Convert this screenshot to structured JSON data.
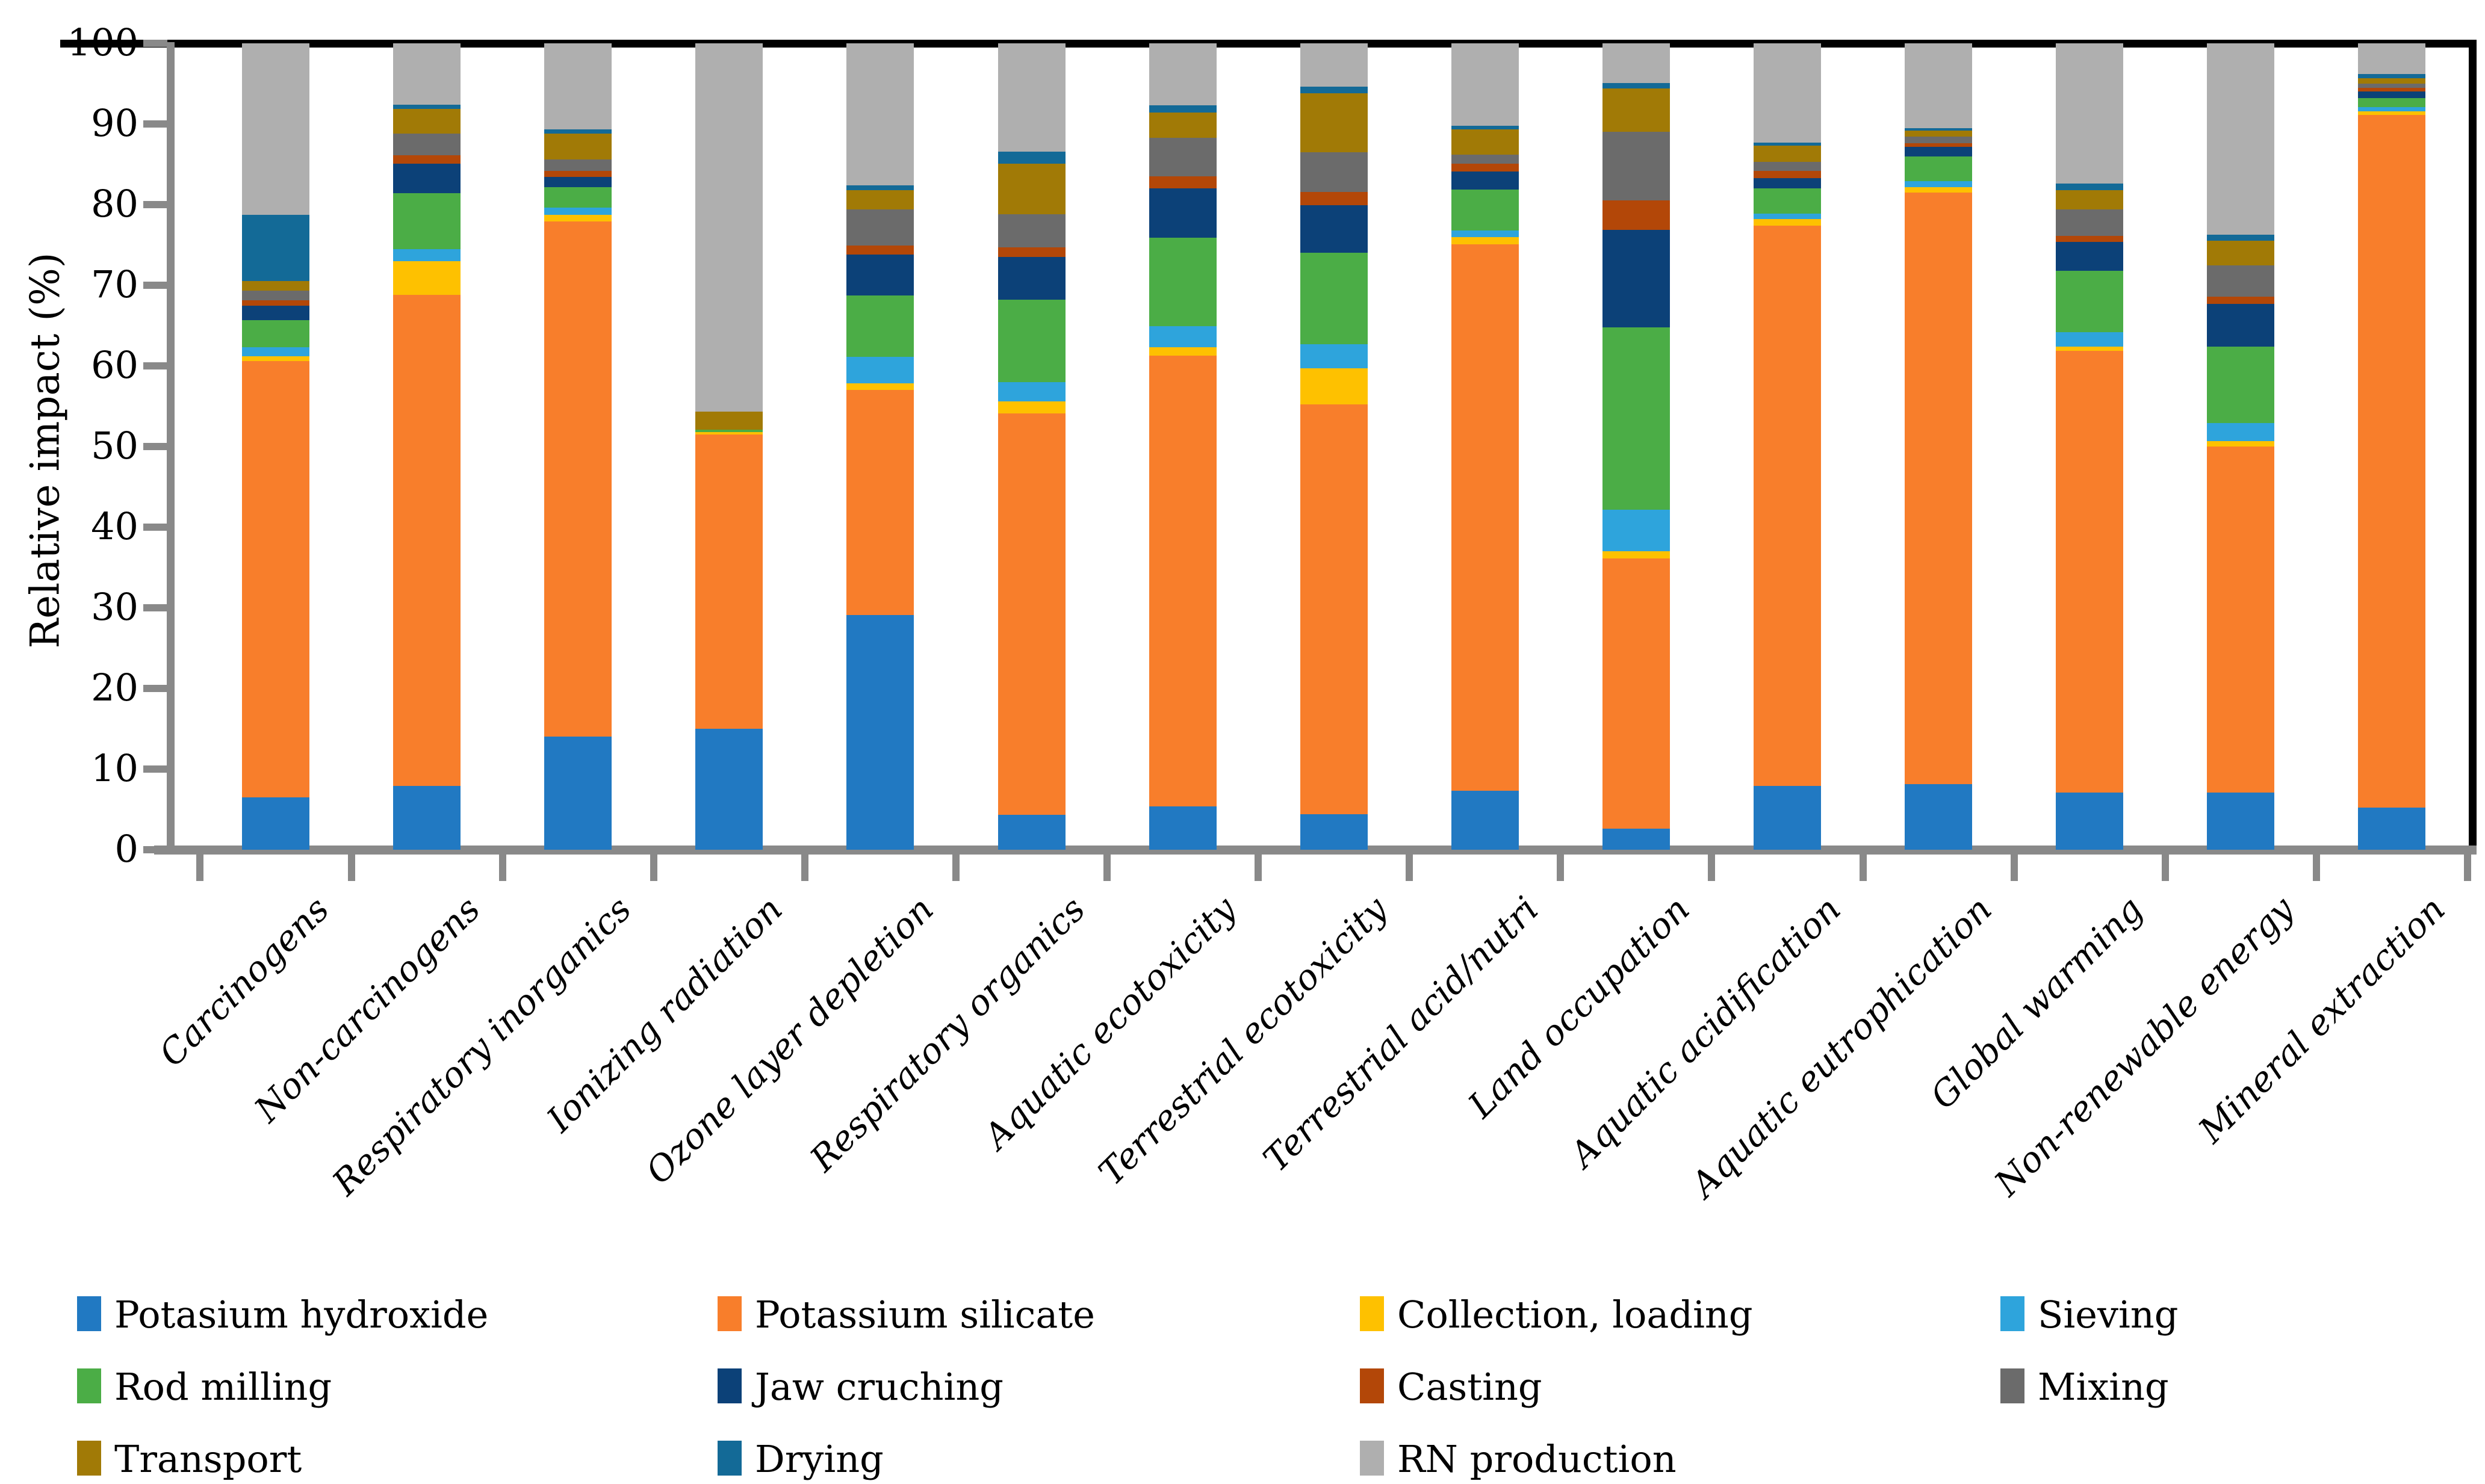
{
  "chart_data": {
    "type": "bar",
    "subtype": "stacked-percentage",
    "title": "",
    "xlabel": "",
    "ylabel": "Relative impact (%)",
    "ylim": [
      0,
      100
    ],
    "ytick_step": 10,
    "ytick_labels": [
      "0",
      "10",
      "20",
      "30",
      "40",
      "50",
      "60",
      "70",
      "80",
      "90",
      "100"
    ],
    "grid": false,
    "legend_position": "bottom",
    "categories": [
      "Carcinogens",
      "Non-carcinogens",
      "Respiratory inorganics",
      "Ionizing radiation",
      "Ozone layer depletion",
      "Respiratory organics",
      "Aquatic ecotoxicity",
      "Terrestrial ecotoxicity",
      "Terrestrial acid/nutri",
      "Land occupation",
      "Aquatic acidification",
      "Aquatic eutrophication",
      "Global warming",
      "Non-renewable energy",
      "Mineral extraction"
    ],
    "series": [
      {
        "name": "Potasium hydroxide",
        "color": "#2179C2",
        "values": [
          6.5,
          7.9,
          14.0,
          15.0,
          29.1,
          4.3,
          5.4,
          4.4,
          7.3,
          2.6,
          7.9,
          8.1,
          7.1,
          7.1,
          5.2
        ]
      },
      {
        "name": "Potassium silicate",
        "color": "#F87E2B",
        "values": [
          54.1,
          60.9,
          63.9,
          36.5,
          27.9,
          49.8,
          55.9,
          50.8,
          67.8,
          33.5,
          69.5,
          73.4,
          54.8,
          42.9,
          85.9
        ]
      },
      {
        "name": "Collection, loading",
        "color": "#FEC100",
        "values": [
          0.6,
          4.2,
          0.8,
          0.3,
          0.8,
          1.5,
          1.0,
          4.5,
          0.9,
          0.9,
          0.8,
          0.7,
          0.5,
          0.7,
          0.5
        ]
      },
      {
        "name": "Sieving",
        "color": "#2EA4DC",
        "values": [
          1.1,
          1.5,
          0.9,
          0.0,
          3.3,
          2.4,
          2.6,
          3.0,
          0.8,
          5.2,
          0.7,
          0.7,
          1.8,
          2.2,
          0.5
        ]
      },
      {
        "name": "Rod milling",
        "color": "#4BAD46",
        "values": [
          3.4,
          6.9,
          2.6,
          0.3,
          7.6,
          10.2,
          11.0,
          11.3,
          5.1,
          22.6,
          3.1,
          3.1,
          7.6,
          9.5,
          1.1
        ]
      },
      {
        "name": "Jaw cruching",
        "color": "#0C4178",
        "values": [
          1.8,
          3.7,
          1.2,
          0.0,
          5.1,
          5.3,
          6.1,
          5.9,
          2.2,
          12.1,
          1.3,
          1.2,
          3.6,
          5.3,
          0.8
        ]
      },
      {
        "name": "Casting",
        "color": "#B34708",
        "values": [
          0.6,
          1.0,
          0.8,
          0.0,
          1.1,
          1.2,
          1.5,
          1.7,
          1.0,
          3.6,
          0.9,
          0.4,
          0.7,
          0.9,
          0.5
        ]
      },
      {
        "name": "Mixing",
        "color": "#6B6B6B",
        "values": [
          1.2,
          2.7,
          1.4,
          0.0,
          4.5,
          4.1,
          4.8,
          4.9,
          1.1,
          8.5,
          1.1,
          0.8,
          3.3,
          3.9,
          0.5
        ]
      },
      {
        "name": "Transport",
        "color": "#A17A06",
        "values": [
          1.2,
          3.1,
          3.2,
          2.2,
          2.4,
          6.3,
          3.1,
          7.3,
          3.1,
          5.4,
          2.0,
          0.8,
          2.4,
          3.0,
          0.7
        ]
      },
      {
        "name": "Drying",
        "color": "#136A97",
        "values": [
          8.2,
          0.5,
          0.5,
          0.0,
          0.6,
          1.5,
          0.9,
          0.8,
          0.5,
          0.7,
          0.4,
          0.3,
          0.8,
          0.8,
          0.5
        ]
      },
      {
        "name": "RN production",
        "color": "#AFAFAF",
        "values": [
          21.3,
          7.6,
          10.7,
          45.7,
          17.6,
          13.4,
          7.7,
          5.4,
          10.2,
          4.9,
          12.3,
          10.5,
          17.4,
          23.7,
          3.8
        ]
      }
    ]
  }
}
